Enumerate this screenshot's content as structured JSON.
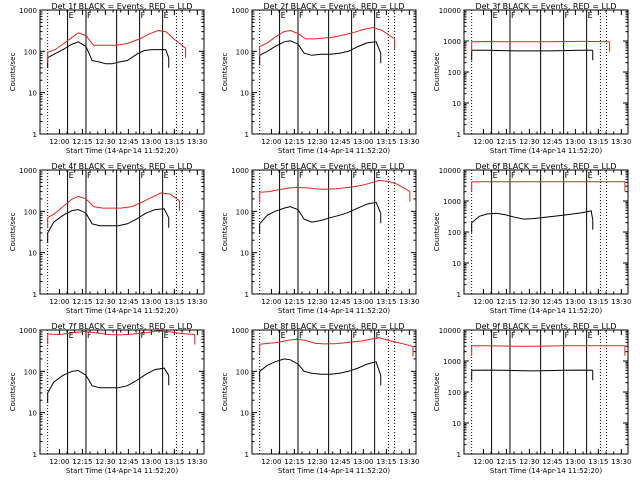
{
  "figure": {
    "colors": {
      "events": "#000000",
      "lld": "#e8231c",
      "axis": "#000000",
      "background": "#ffffff"
    }
  },
  "chart_data": [
    {
      "type": "line",
      "title": "Det 1f BLACK = Events, RED = LLD",
      "xlabel": "Start Time (14-Apr-14 11:52:20)",
      "ylabel": "Counts/sec",
      "y_scale": "log",
      "ylim": [
        1,
        1000
      ],
      "y_ticks": [
        "1",
        "10",
        "100",
        "1000"
      ],
      "x_ticks": [
        "12:00",
        "12:15",
        "12:30",
        "12:45",
        "13:00",
        "13:15",
        "13:30"
      ],
      "xlim_minutes_after_start": [
        -5,
        102
      ],
      "flag_lines": [
        {
          "x": 13,
          "label": "E"
        },
        {
          "x": 25,
          "label": "F"
        },
        {
          "x": 45,
          "label": ""
        },
        {
          "x": 60,
          "label": "F"
        },
        {
          "x": 75,
          "label": "E"
        }
      ],
      "dotted_lines": [
        0,
        84,
        88
      ],
      "series": [
        {
          "name": "Events",
          "x": [
            0,
            4,
            10,
            16,
            20,
            25,
            29,
            34,
            38,
            42,
            46,
            52,
            58,
            63,
            68,
            73,
            77,
            79
          ],
          "y": [
            70,
            85,
            110,
            150,
            170,
            130,
            60,
            55,
            50,
            50,
            55,
            60,
            85,
            105,
            110,
            110,
            110,
            70
          ]
        },
        {
          "name": "LLD",
          "x": [
            0,
            5,
            10,
            16,
            20,
            25,
            30,
            36,
            40,
            45,
            52,
            60,
            66,
            72,
            77,
            83,
            90
          ],
          "y": [
            95,
            110,
            150,
            220,
            280,
            240,
            140,
            140,
            140,
            140,
            155,
            200,
            260,
            320,
            300,
            190,
            120
          ]
        }
      ]
    },
    {
      "type": "line",
      "title": "Det 2f BLACK = Events, RED = LLD",
      "xlabel": "Start Time (14-Apr-14 11:52:20)",
      "ylabel": "Counts/sec",
      "y_scale": "log",
      "ylim": [
        1,
        1000
      ],
      "y_ticks": [
        "1",
        "10",
        "100",
        "1000"
      ],
      "x_ticks": [
        "12:00",
        "12:15",
        "12:30",
        "12:45",
        "13:00",
        "13:15",
        "13:30"
      ],
      "xlim_minutes_after_start": [
        -5,
        102
      ],
      "flag_lines": [
        {
          "x": 13,
          "label": "E"
        },
        {
          "x": 25,
          "label": "F"
        },
        {
          "x": 45,
          "label": ""
        },
        {
          "x": 60,
          "label": "F"
        },
        {
          "x": 75,
          "label": "E"
        }
      ],
      "dotted_lines": [
        0,
        84,
        88
      ],
      "series": [
        {
          "name": "Events",
          "x": [
            0,
            5,
            10,
            16,
            20,
            25,
            29,
            34,
            40,
            46,
            52,
            58,
            64,
            70,
            76,
            79
          ],
          "y": [
            80,
            100,
            130,
            170,
            180,
            150,
            90,
            80,
            85,
            85,
            90,
            100,
            130,
            160,
            170,
            90
          ]
        },
        {
          "name": "LLD",
          "x": [
            0,
            5,
            10,
            16,
            20,
            25,
            30,
            36,
            42,
            48,
            55,
            62,
            68,
            74,
            80,
            88
          ],
          "y": [
            130,
            160,
            220,
            300,
            320,
            270,
            200,
            200,
            210,
            220,
            250,
            290,
            340,
            380,
            320,
            200
          ]
        }
      ]
    },
    {
      "type": "line",
      "title": "Det 3f BLACK = Events, RED = LLD",
      "xlabel": "Start Time (14-Apr-14 11:52:20)",
      "ylabel": "Counts/sec",
      "y_scale": "log",
      "ylim": [
        1,
        10000
      ],
      "y_ticks": [
        "1",
        "10",
        "100",
        "1000",
        "10000"
      ],
      "x_ticks": [
        "12:00",
        "12:15",
        "12:30",
        "12:45",
        "13:00",
        "13:15",
        "13:30"
      ],
      "xlim_minutes_after_start": [
        -5,
        102
      ],
      "flag_lines": [
        {
          "x": 13,
          "label": "E"
        },
        {
          "x": 25,
          "label": "F"
        },
        {
          "x": 45,
          "label": ""
        },
        {
          "x": 60,
          "label": "F"
        },
        {
          "x": 75,
          "label": "E"
        }
      ],
      "dotted_lines": [
        0,
        84,
        88
      ],
      "series": [
        {
          "name": "Events",
          "x": [
            0,
            10,
            20,
            30,
            40,
            50,
            60,
            70,
            79
          ],
          "y": [
            500,
            500,
            490,
            480,
            480,
            480,
            490,
            500,
            500
          ]
        },
        {
          "name": "LLD",
          "x": [
            0,
            10,
            20,
            30,
            40,
            50,
            60,
            70,
            80,
            90
          ],
          "y": [
            950,
            960,
            950,
            940,
            940,
            950,
            960,
            970,
            960,
            950
          ]
        }
      ]
    },
    {
      "type": "line",
      "title": "Det 4f BLACK = Events, RED = LLD",
      "xlabel": "Start Time (14-Apr-14 11:52:20)",
      "ylabel": "Counts/sec",
      "y_scale": "log",
      "ylim": [
        1,
        1000
      ],
      "y_ticks": [
        "1",
        "10",
        "100",
        "1000"
      ],
      "x_ticks": [
        "12:00",
        "12:15",
        "12:30",
        "12:45",
        "13:00",
        "13:15",
        "13:30"
      ],
      "xlim_minutes_after_start": [
        -5,
        102
      ],
      "flag_lines": [
        {
          "x": 13,
          "label": "E"
        },
        {
          "x": 25,
          "label": "F"
        },
        {
          "x": 45,
          "label": ""
        },
        {
          "x": 60,
          "label": "F"
        },
        {
          "x": 75,
          "label": "E"
        }
      ],
      "dotted_lines": [
        0,
        84,
        88
      ],
      "series": [
        {
          "name": "Events",
          "x": [
            0,
            4,
            10,
            16,
            20,
            25,
            29,
            34,
            40,
            46,
            52,
            58,
            64,
            70,
            76,
            79
          ],
          "y": [
            30,
            55,
            80,
            105,
            110,
            90,
            50,
            45,
            45,
            45,
            50,
            65,
            90,
            110,
            115,
            70
          ]
        },
        {
          "name": "LLD",
          "x": [
            0,
            5,
            10,
            16,
            20,
            25,
            30,
            36,
            42,
            48,
            55,
            62,
            68,
            74,
            80,
            86
          ],
          "y": [
            70,
            90,
            130,
            200,
            230,
            200,
            130,
            120,
            120,
            120,
            130,
            170,
            220,
            280,
            260,
            180
          ]
        }
      ]
    },
    {
      "type": "line",
      "title": "Det 5f BLACK = Events, RED = LLD",
      "xlabel": "Start Time (14-Apr-14 11:52:20)",
      "ylabel": "Counts/sec",
      "y_scale": "log",
      "ylim": [
        1,
        1000
      ],
      "y_ticks": [
        "1",
        "10",
        "100",
        "1000"
      ],
      "x_ticks": [
        "12:00",
        "12:15",
        "12:30",
        "12:45",
        "13:00",
        "13:15",
        "13:30"
      ],
      "xlim_minutes_after_start": [
        -5,
        102
      ],
      "flag_lines": [
        {
          "x": 13,
          "label": "E"
        },
        {
          "x": 25,
          "label": "F"
        },
        {
          "x": 45,
          "label": ""
        },
        {
          "x": 60,
          "label": "F"
        },
        {
          "x": 75,
          "label": "E"
        }
      ],
      "dotted_lines": [
        0,
        84,
        88
      ],
      "series": [
        {
          "name": "Events",
          "x": [
            0,
            5,
            10,
            16,
            20,
            25,
            29,
            34,
            40,
            46,
            52,
            58,
            64,
            70,
            76,
            79
          ],
          "y": [
            50,
            80,
            100,
            120,
            130,
            110,
            65,
            55,
            60,
            70,
            80,
            95,
            120,
            150,
            165,
            90
          ]
        },
        {
          "name": "LLD",
          "x": [
            0,
            6,
            12,
            18,
            24,
            30,
            36,
            42,
            50,
            58,
            66,
            72,
            78,
            84,
            90,
            98
          ],
          "y": [
            290,
            300,
            330,
            360,
            380,
            370,
            350,
            340,
            350,
            380,
            420,
            480,
            560,
            530,
            450,
            300
          ]
        }
      ]
    },
    {
      "type": "line",
      "title": "Det 6f BLACK = Events, RED = LLD",
      "xlabel": "Start Time (14-Apr-14 11:52:20)",
      "ylabel": "Counts/sec",
      "y_scale": "log",
      "ylim": [
        1,
        10000
      ],
      "y_ticks": [
        "1",
        "10",
        "100",
        "1000",
        "10000"
      ],
      "x_ticks": [
        "12:00",
        "12:15",
        "12:30",
        "12:45",
        "13:00",
        "13:15",
        "13:30"
      ],
      "xlim_minutes_after_start": [
        -5,
        102
      ],
      "flag_lines": [
        {
          "x": 13,
          "label": "E"
        },
        {
          "x": 25,
          "label": "F"
        },
        {
          "x": 45,
          "label": ""
        },
        {
          "x": 60,
          "label": "F"
        },
        {
          "x": 75,
          "label": "E"
        }
      ],
      "dotted_lines": [
        0,
        84,
        88
      ],
      "series": [
        {
          "name": "Events",
          "x": [
            0,
            5,
            10,
            16,
            22,
            28,
            34,
            40,
            48,
            56,
            64,
            72,
            78,
            79
          ],
          "y": [
            200,
            320,
            380,
            400,
            360,
            300,
            260,
            270,
            300,
            330,
            370,
            420,
            480,
            250
          ]
        },
        {
          "name": "LLD",
          "x": [
            0,
            20,
            40,
            60,
            80,
            100
          ],
          "y": [
            4200,
            4200,
            4200,
            4200,
            4200,
            4200
          ]
        }
      ]
    },
    {
      "type": "line",
      "title": "Det 7f BLACK = Events, RED = LLD",
      "xlabel": "Start Time (14-Apr-14 11:52:20)",
      "ylabel": "Counts/sec",
      "y_scale": "log",
      "ylim": [
        1,
        1000
      ],
      "y_ticks": [
        "1",
        "10",
        "100",
        "1000"
      ],
      "x_ticks": [
        "12:00",
        "12:15",
        "12:30",
        "12:45",
        "13:00",
        "13:15",
        "13:30"
      ],
      "xlim_minutes_after_start": [
        -5,
        102
      ],
      "flag_lines": [
        {
          "x": 13,
          "label": "E"
        },
        {
          "x": 25,
          "label": "F"
        },
        {
          "x": 45,
          "label": ""
        },
        {
          "x": 60,
          "label": "F"
        },
        {
          "x": 75,
          "label": "E"
        }
      ],
      "dotted_lines": [
        0,
        84,
        88
      ],
      "series": [
        {
          "name": "Events",
          "x": [
            0,
            4,
            10,
            16,
            20,
            25,
            29,
            34,
            40,
            46,
            52,
            58,
            64,
            70,
            76,
            79
          ],
          "y": [
            30,
            55,
            80,
            100,
            105,
            80,
            45,
            40,
            40,
            40,
            45,
            60,
            85,
            110,
            120,
            80
          ]
        },
        {
          "name": "LLD",
          "x": [
            0,
            8,
            16,
            24,
            32,
            40,
            48,
            56,
            64,
            72,
            80,
            88,
            96
          ],
          "y": [
            800,
            780,
            850,
            920,
            850,
            780,
            760,
            800,
            850,
            950,
            900,
            820,
            780
          ]
        }
      ]
    },
    {
      "type": "line",
      "title": "Det 8f BLACK = Events, RED = LLD",
      "xlabel": "Start Time (14-Apr-14 11:52:20)",
      "ylabel": "Counts/sec",
      "y_scale": "log",
      "ylim": [
        1,
        1000
      ],
      "y_ticks": [
        "1",
        "10",
        "100",
        "1000"
      ],
      "x_ticks": [
        "12:00",
        "12:15",
        "12:30",
        "12:45",
        "13:00",
        "13:15",
        "13:30"
      ],
      "xlim_minutes_after_start": [
        -5,
        102
      ],
      "flag_lines": [
        {
          "x": 13,
          "label": "E"
        },
        {
          "x": 25,
          "label": "F"
        },
        {
          "x": 45,
          "label": ""
        },
        {
          "x": 60,
          "label": "F"
        },
        {
          "x": 75,
          "label": "E"
        }
      ],
      "dotted_lines": [
        0,
        84,
        88
      ],
      "series": [
        {
          "name": "Events",
          "x": [
            0,
            5,
            10,
            16,
            20,
            25,
            29,
            34,
            40,
            46,
            52,
            58,
            64,
            70,
            76,
            79
          ],
          "y": [
            100,
            140,
            170,
            200,
            190,
            150,
            100,
            90,
            85,
            85,
            90,
            100,
            120,
            150,
            170,
            80
          ]
        },
        {
          "name": "LLD",
          "x": [
            0,
            6,
            12,
            18,
            24,
            30,
            36,
            42,
            50,
            58,
            66,
            72,
            78,
            84,
            92,
            100
          ],
          "y": [
            450,
            480,
            500,
            560,
            600,
            560,
            480,
            460,
            470,
            500,
            540,
            600,
            650,
            560,
            480,
            400
          ]
        }
      ]
    },
    {
      "type": "line",
      "title": "Det 9f BLACK = Events, RED = LLD",
      "xlabel": "Start Time (14-Apr-14 11:52:20)",
      "ylabel": "Counts/sec",
      "y_scale": "log",
      "ylim": [
        1,
        10000
      ],
      "y_ticks": [
        "1",
        "10",
        "100",
        "1000",
        "10000"
      ],
      "x_ticks": [
        "12:00",
        "12:15",
        "12:30",
        "12:45",
        "13:00",
        "13:15",
        "13:30"
      ],
      "xlim_minutes_after_start": [
        -5,
        102
      ],
      "flag_lines": [
        {
          "x": 13,
          "label": "E"
        },
        {
          "x": 25,
          "label": "F"
        },
        {
          "x": 45,
          "label": ""
        },
        {
          "x": 60,
          "label": "F"
        },
        {
          "x": 75,
          "label": "E"
        }
      ],
      "dotted_lines": [
        0,
        84,
        88
      ],
      "series": [
        {
          "name": "Events",
          "x": [
            0,
            10,
            20,
            30,
            40,
            50,
            60,
            70,
            79
          ],
          "y": [
            500,
            510,
            500,
            490,
            480,
            490,
            500,
            510,
            500
          ]
        },
        {
          "name": "LLD",
          "x": [
            0,
            10,
            20,
            30,
            40,
            50,
            60,
            70,
            80,
            90,
            100
          ],
          "y": [
            3100,
            3100,
            3050,
            3000,
            3000,
            3050,
            3100,
            3100,
            3100,
            3100,
            3100
          ]
        }
      ]
    }
  ]
}
